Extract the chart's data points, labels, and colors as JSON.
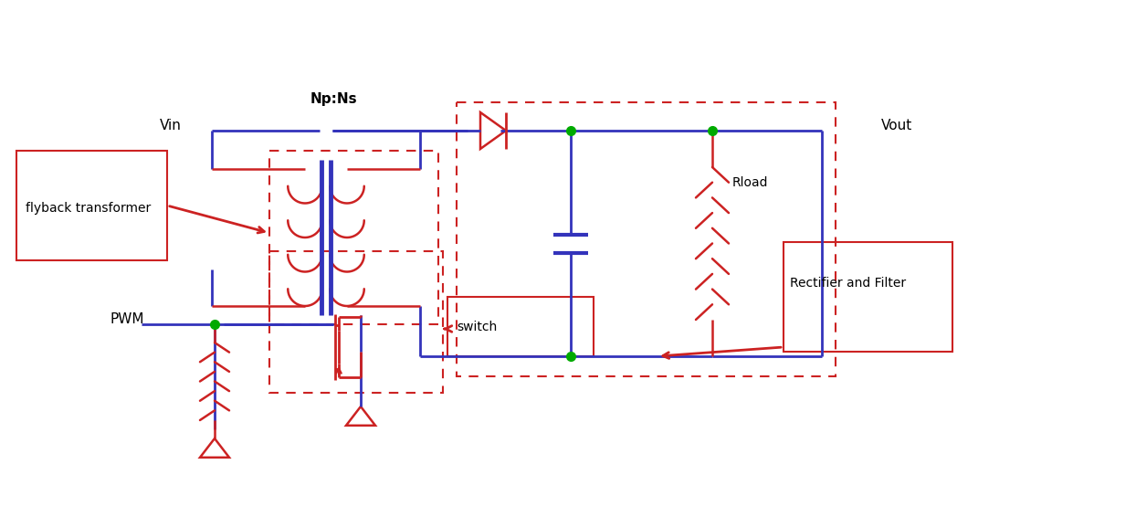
{
  "bg_color": "#ffffff",
  "blue": "#3333bb",
  "red": "#cc2222",
  "green": "#00aa00",
  "fig_width": 12.44,
  "fig_height": 5.66,
  "labels": {
    "vin": "Vin",
    "vout": "Vout",
    "npns": "Np:Ns",
    "rload": "Rload",
    "pwm": "PWM",
    "flyback": "flyback transformer",
    "switch": "switch",
    "rectifier": "Rectifier and Filter"
  }
}
